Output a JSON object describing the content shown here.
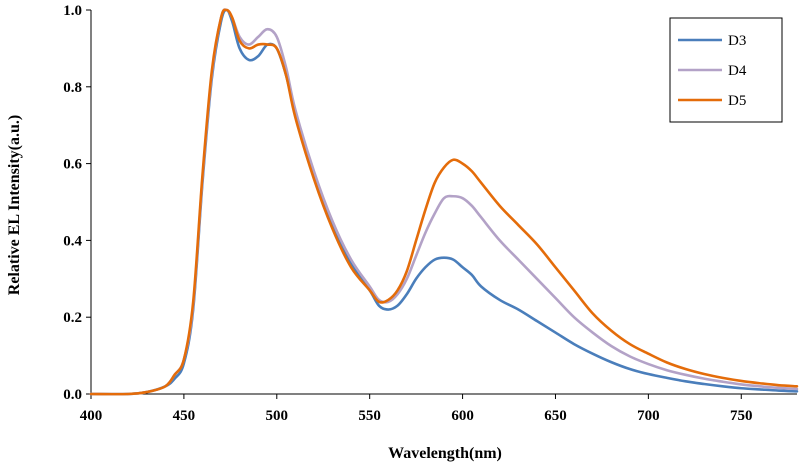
{
  "chart_data": {
    "type": "line",
    "title": "",
    "xlabel": "Wavelength(nm)",
    "ylabel": "Relative EL Intensity(a.u.)",
    "xlim": [
      400,
      780
    ],
    "ylim": [
      0,
      1.0
    ],
    "xticks": [
      400,
      450,
      500,
      550,
      600,
      650,
      700,
      750
    ],
    "xtick_labels": [
      "400",
      "450",
      "500",
      "550",
      "600",
      "650",
      "700",
      "750"
    ],
    "yticks": [
      0,
      0.2,
      0.4,
      0.6,
      0.8,
      1.0
    ],
    "ytick_labels": [
      "0.0",
      "0.2",
      "0.4",
      "0.6",
      "0.8",
      "1.0"
    ],
    "grid": false,
    "legend_position": "top-right",
    "series": [
      {
        "name": "D3",
        "color": "#4a7ebb",
        "x": [
          400,
          420,
          430,
          440,
          445,
          450,
          455,
          460,
          465,
          470,
          473,
          476,
          480,
          485,
          490,
          495,
          500,
          505,
          510,
          520,
          530,
          540,
          550,
          555,
          560,
          565,
          570,
          575,
          580,
          585,
          590,
          595,
          600,
          605,
          610,
          620,
          630,
          640,
          650,
          660,
          670,
          680,
          690,
          700,
          710,
          720,
          730,
          740,
          750,
          760,
          770,
          780
        ],
        "y": [
          0,
          0,
          0.005,
          0.02,
          0.04,
          0.08,
          0.22,
          0.55,
          0.82,
          0.97,
          1.0,
          0.97,
          0.9,
          0.87,
          0.88,
          0.91,
          0.9,
          0.83,
          0.73,
          0.57,
          0.44,
          0.34,
          0.27,
          0.23,
          0.22,
          0.23,
          0.26,
          0.3,
          0.33,
          0.35,
          0.355,
          0.35,
          0.33,
          0.31,
          0.28,
          0.245,
          0.22,
          0.19,
          0.16,
          0.13,
          0.105,
          0.083,
          0.065,
          0.052,
          0.042,
          0.033,
          0.026,
          0.02,
          0.015,
          0.012,
          0.009,
          0.007
        ]
      },
      {
        "name": "D4",
        "color": "#b3a2c7",
        "x": [
          400,
          420,
          430,
          440,
          445,
          450,
          455,
          460,
          465,
          470,
          473,
          476,
          480,
          485,
          490,
          495,
          500,
          505,
          510,
          520,
          530,
          540,
          550,
          555,
          560,
          565,
          570,
          575,
          580,
          585,
          590,
          595,
          600,
          605,
          610,
          620,
          630,
          640,
          650,
          660,
          670,
          680,
          690,
          700,
          710,
          720,
          730,
          740,
          750,
          760,
          770,
          780
        ],
        "y": [
          0,
          0,
          0.005,
          0.02,
          0.05,
          0.09,
          0.23,
          0.56,
          0.83,
          0.98,
          1.0,
          0.98,
          0.93,
          0.91,
          0.93,
          0.95,
          0.93,
          0.85,
          0.74,
          0.58,
          0.45,
          0.35,
          0.28,
          0.245,
          0.24,
          0.26,
          0.3,
          0.36,
          0.42,
          0.47,
          0.51,
          0.515,
          0.51,
          0.49,
          0.46,
          0.4,
          0.35,
          0.3,
          0.25,
          0.2,
          0.16,
          0.125,
          0.098,
          0.078,
          0.062,
          0.05,
          0.04,
          0.032,
          0.025,
          0.02,
          0.016,
          0.013
        ]
      },
      {
        "name": "D5",
        "color": "#e46c0a",
        "x": [
          400,
          420,
          430,
          440,
          445,
          450,
          455,
          460,
          465,
          470,
          473,
          476,
          480,
          485,
          490,
          495,
          500,
          505,
          510,
          520,
          530,
          540,
          550,
          555,
          560,
          565,
          570,
          575,
          580,
          585,
          590,
          595,
          600,
          605,
          610,
          620,
          630,
          640,
          650,
          660,
          670,
          680,
          690,
          700,
          710,
          720,
          730,
          740,
          750,
          760,
          770,
          780
        ],
        "y": [
          0,
          0,
          0.005,
          0.02,
          0.05,
          0.09,
          0.24,
          0.57,
          0.84,
          0.98,
          1.0,
          0.98,
          0.92,
          0.9,
          0.91,
          0.91,
          0.9,
          0.83,
          0.72,
          0.56,
          0.43,
          0.33,
          0.27,
          0.24,
          0.245,
          0.27,
          0.32,
          0.4,
          0.48,
          0.55,
          0.59,
          0.61,
          0.6,
          0.58,
          0.55,
          0.49,
          0.44,
          0.39,
          0.33,
          0.27,
          0.21,
          0.165,
          0.13,
          0.105,
          0.082,
          0.065,
          0.052,
          0.042,
          0.034,
          0.028,
          0.023,
          0.02
        ]
      }
    ]
  }
}
